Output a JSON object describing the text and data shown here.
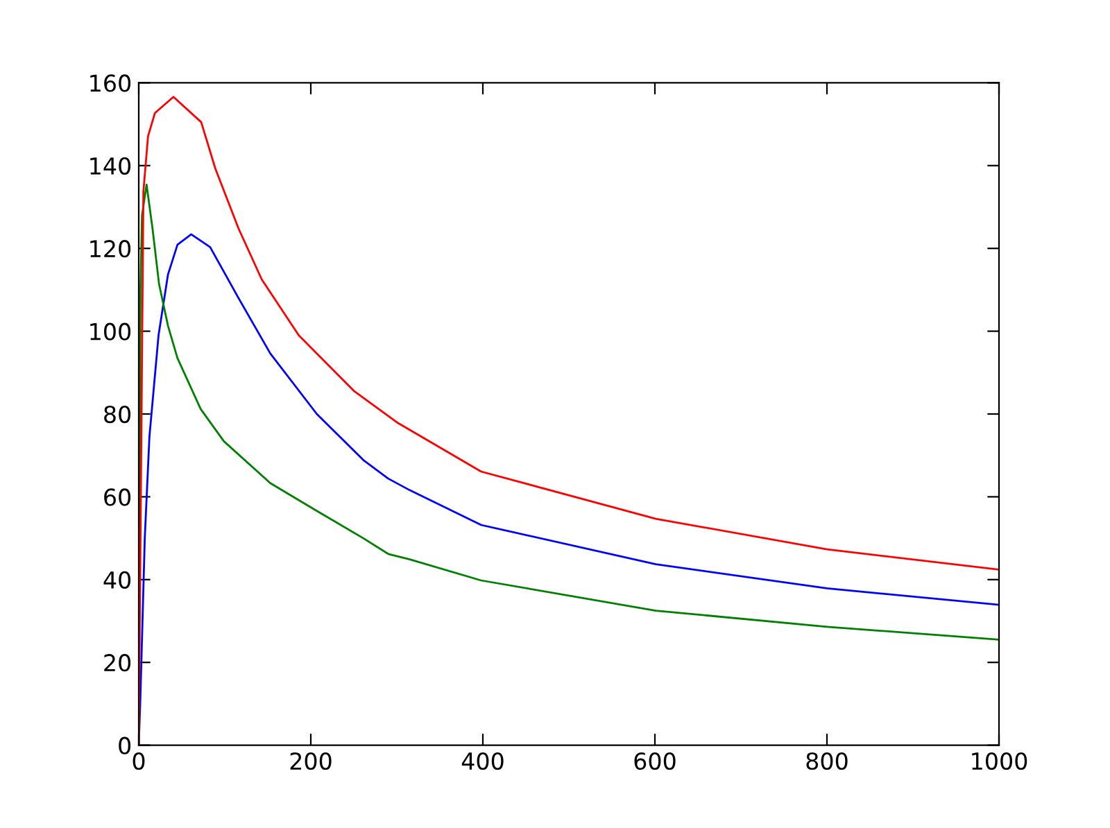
{
  "chart_data": {
    "type": "line",
    "xlim": [
      0,
      1000
    ],
    "ylim": [
      0,
      160
    ],
    "xticks": [
      0,
      200,
      400,
      600,
      800,
      1000
    ],
    "yticks": [
      0,
      20,
      40,
      60,
      80,
      100,
      120,
      140,
      160
    ],
    "grid": false,
    "legend": false,
    "marker": "none",
    "line_style": "solid",
    "series": [
      {
        "color": "#0000ff",
        "x": [
          0,
          1.8,
          7,
          12.4,
          23,
          34,
          45,
          61,
          83,
          116,
          153,
          207,
          261,
          290,
          315,
          398,
          601,
          800,
          1000
        ],
        "values": [
          0,
          10.7,
          50,
          74.5,
          99,
          113.7,
          120.9,
          123.4,
          120.3,
          108,
          94.6,
          80,
          68.9,
          64.4,
          61.6,
          53.2,
          43.7,
          37.9,
          33.9
        ]
      },
      {
        "color": "#008000",
        "x": [
          0,
          2,
          3.8,
          9.1,
          16,
          23.6,
          34,
          45,
          72,
          99,
          153,
          207,
          261,
          290,
          315,
          398,
          601,
          800,
          1000
        ],
        "values": [
          0,
          110,
          128,
          135.4,
          124.8,
          111.4,
          101.3,
          93.5,
          81.2,
          73.4,
          63.3,
          56.6,
          50,
          46.2,
          44.9,
          39.8,
          32.5,
          28.6,
          25.5
        ]
      },
      {
        "color": "#ff0000",
        "x": [
          0,
          5.4,
          10.8,
          18.8,
          40.3,
          72.6,
          89,
          116,
          143,
          186,
          250,
          300,
          398,
          601,
          800,
          1000
        ],
        "values": [
          0,
          133.7,
          147.1,
          152.7,
          156.6,
          150.5,
          139.3,
          124.8,
          112.5,
          99,
          85.6,
          78,
          66.1,
          54.7,
          47.3,
          42.4
        ]
      }
    ]
  }
}
